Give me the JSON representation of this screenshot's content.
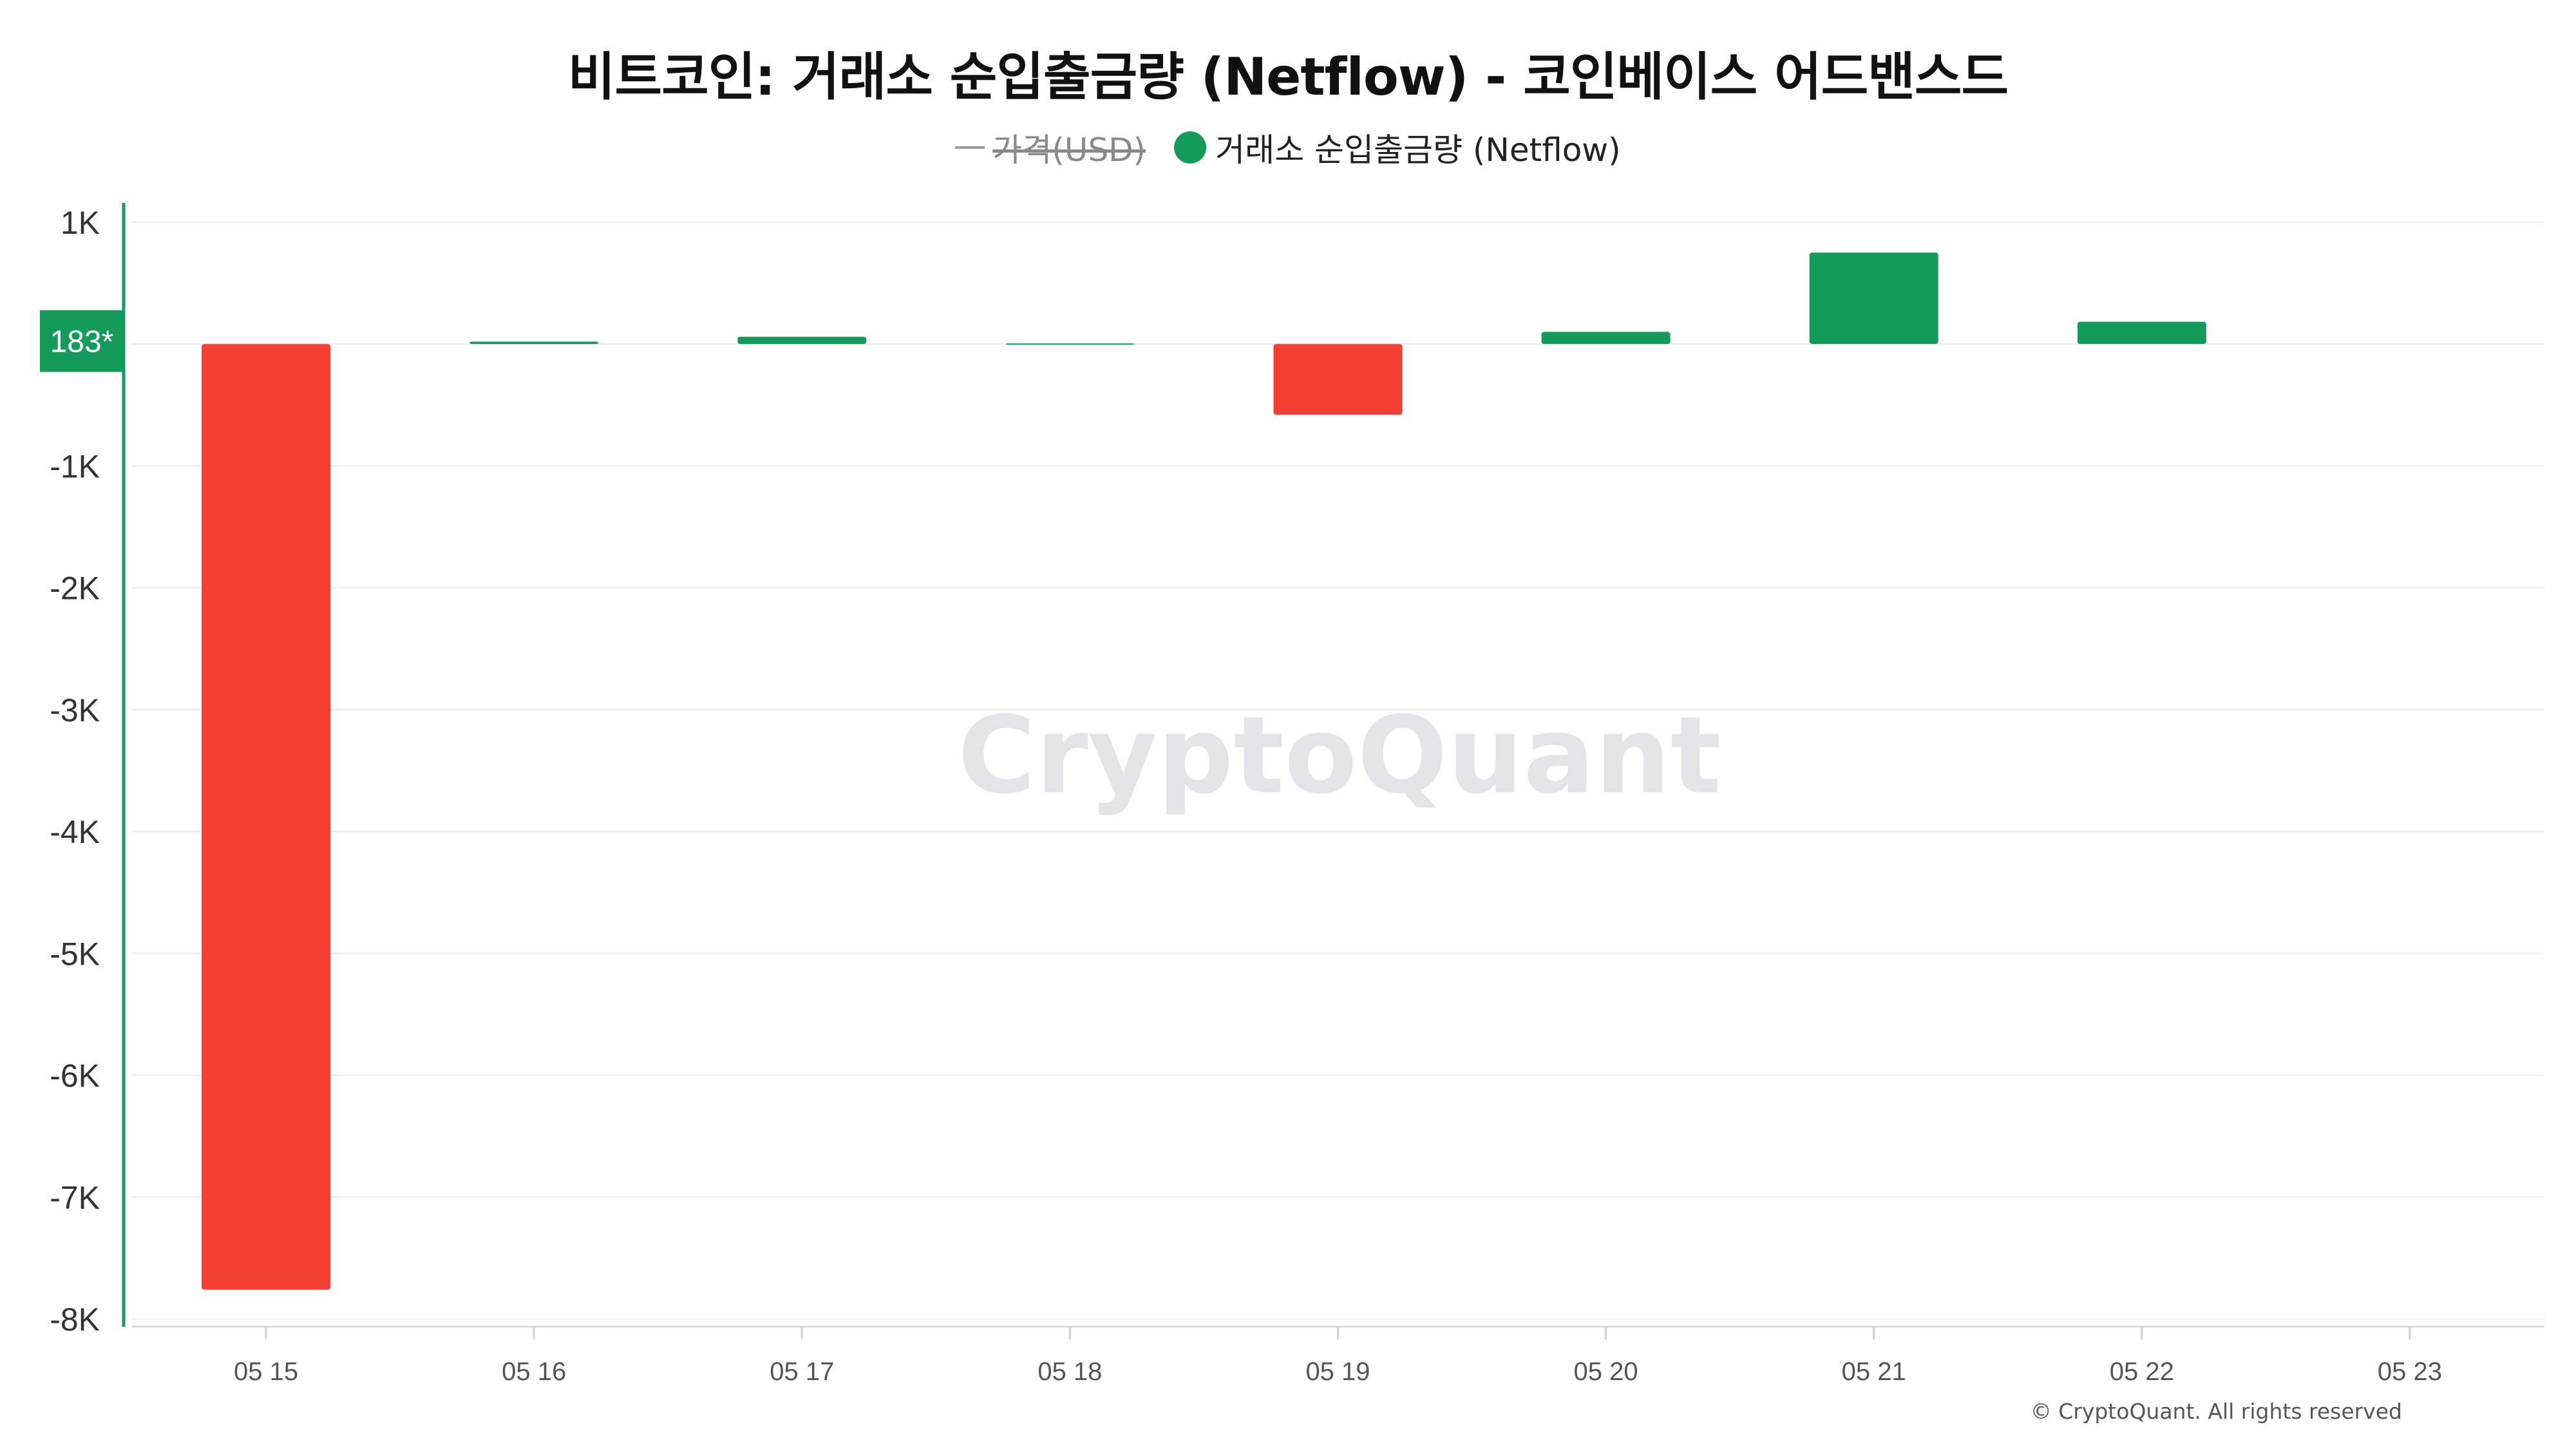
{
  "chart_data": {
    "type": "bar",
    "title": "비트코인: 거래소 순입출금량 (Netflow) - 코인베이스 어드밴스드",
    "categories": [
      "05 15",
      "05 16",
      "05 17",
      "05 18",
      "05 19",
      "05 20",
      "05 21",
      "05 22",
      "05 23"
    ],
    "series": [
      {
        "name": "거래소 순입출금량 (Netflow)",
        "values": [
          -7760,
          20,
          60,
          5,
          -580,
          100,
          750,
          183,
          null
        ]
      }
    ],
    "ylim": [
      -8000,
      1000
    ],
    "yticks": [
      1000,
      0,
      -1000,
      -2000,
      -3000,
      -4000,
      -5000,
      -6000,
      -7000,
      -8000
    ],
    "ytick_labels": [
      "1K",
      "0",
      "-1K",
      "-2K",
      "-3K",
      "-4K",
      "-5K",
      "-6K",
      "-7K",
      "-8K"
    ],
    "xlabel": "",
    "ylabel": "",
    "grid": true,
    "legend_position": "top-center",
    "last_value_label": "183*",
    "colors": {
      "positive": "#159a5c",
      "negative": "#f43f34",
      "axis": "#159a5c"
    }
  },
  "legend": {
    "price_label": "가격(USD)",
    "netflow_label": "거래소 순입출금량 (Netflow)",
    "netflow_color": "#159a5c"
  },
  "watermark": "CryptoQuant",
  "copyright": "© CryptoQuant. All rights reserved"
}
